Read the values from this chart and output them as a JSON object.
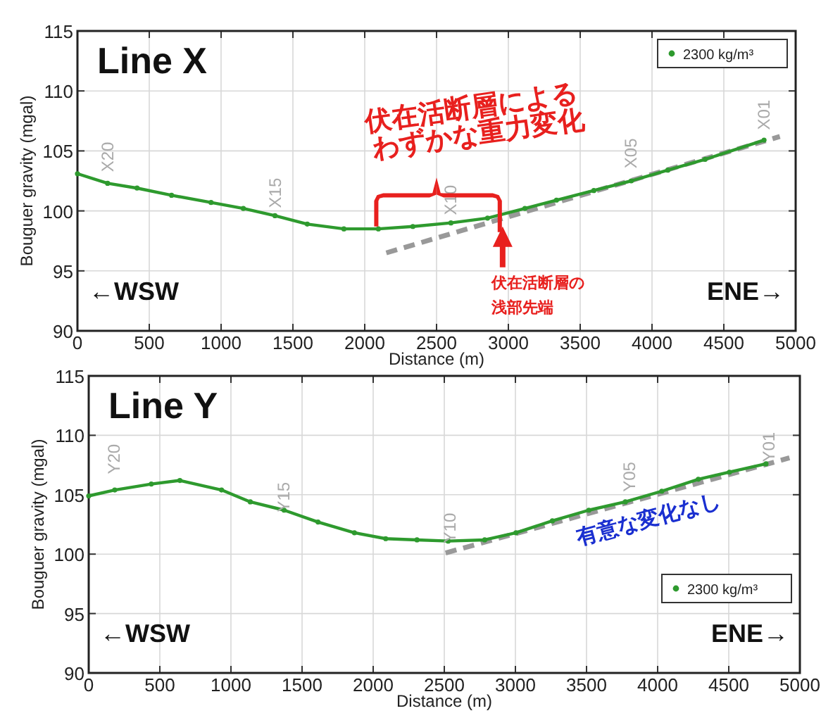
{
  "chart_data": [
    {
      "type": "line",
      "title": "Line X",
      "xlabel": "Distance (m)",
      "ylabel": "Bouguer gravity (mgal)",
      "xlim": [
        0,
        5000
      ],
      "ylim": [
        90,
        115
      ],
      "xticks": [
        0,
        500,
        1000,
        1500,
        2000,
        2500,
        3000,
        3500,
        4000,
        4500,
        5000
      ],
      "yticks": [
        90,
        95,
        100,
        105,
        110,
        115
      ],
      "grid": true,
      "legend": "top right",
      "marker": "circle",
      "line_style": "solid",
      "series": [
        {
          "name": "2300 kg/m³",
          "color": "#2e9a2e",
          "x": [
            0,
            210,
            415,
            655,
            930,
            1155,
            1375,
            1600,
            1855,
            2095,
            2335,
            2600,
            2855,
            3115,
            3335,
            3595,
            3855,
            4110,
            4370,
            4780
          ],
          "values": [
            103.1,
            102.3,
            101.9,
            101.3,
            100.7,
            100.2,
            99.6,
            98.9,
            98.5,
            98.5,
            98.7,
            99.0,
            99.4,
            100.2,
            100.9,
            101.7,
            102.5,
            103.4,
            104.3,
            105.9
          ]
        },
        {
          "type": "line",
          "color": "#999999",
          "line_style": "dashed",
          "marker": "none",
          "x": [
            2150,
            4890
          ],
          "values": [
            96.5,
            106.2
          ]
        }
      ],
      "annotations": [
        "X20",
        "X15",
        "X10",
        "X05",
        "X01",
        "伏在活断層による",
        "わずかな重力変化",
        "伏在活断層の",
        "浅部先端",
        "←WSW",
        "ENE→"
      ]
    },
    {
      "type": "line",
      "title": "Line Y",
      "xlabel": "Distance (m)",
      "ylabel": "Bouguer gravity (mgal)",
      "xlim": [
        0,
        5000
      ],
      "ylim": [
        90,
        115
      ],
      "xticks": [
        0,
        500,
        1000,
        1500,
        2000,
        2500,
        3000,
        3500,
        4000,
        4500,
        5000
      ],
      "yticks": [
        90,
        95,
        100,
        105,
        110,
        115
      ],
      "grid": true,
      "legend": "bottom right",
      "marker": "circle",
      "line_style": "solid",
      "series": [
        {
          "name": "2300 kg/m³",
          "color": "#2e9a2e",
          "x": [
            0,
            183,
            440,
            641,
            934,
            1136,
            1374,
            1612,
            1868,
            2088,
            2308,
            2527,
            2784,
            3004,
            3260,
            3516,
            3773,
            4029,
            4286,
            4505,
            4762
          ],
          "values": [
            104.9,
            105.4,
            105.9,
            106.2,
            105.4,
            104.4,
            103.7,
            102.7,
            101.8,
            101.3,
            101.2,
            101.1,
            101.2,
            101.8,
            102.8,
            103.7,
            104.4,
            105.3,
            106.3,
            106.9,
            107.6
          ]
        },
        {
          "type": "line",
          "color": "#999999",
          "line_style": "dashed",
          "marker": "none",
          "x": [
            2509,
            4927
          ],
          "values": [
            100.1,
            108.1
          ]
        }
      ],
      "annotations": [
        "Y20",
        "Y15",
        "Y10",
        "Y05",
        "Y01",
        "有意な変化なし",
        "←WSW",
        "ENE→"
      ]
    }
  ]
}
